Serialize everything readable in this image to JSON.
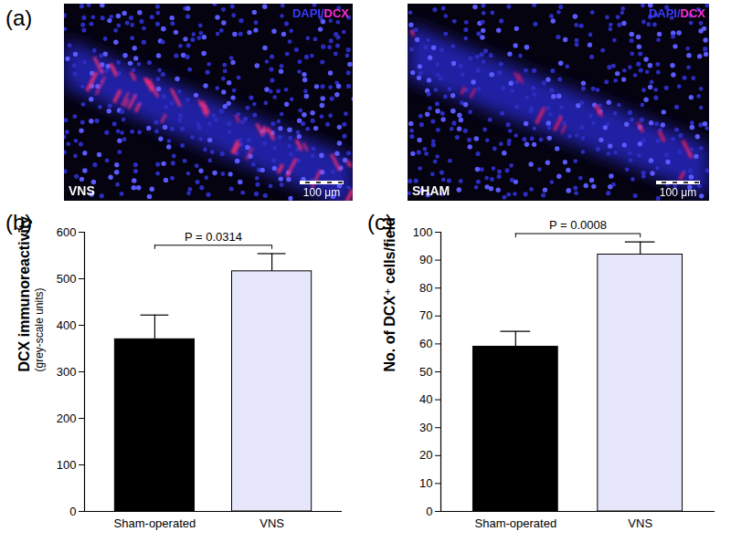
{
  "micrographs": {
    "panel_label": "(a)",
    "stain_parts": [
      {
        "text": "DAPI/",
        "color": "#3a3aff"
      },
      {
        "text": "DCX",
        "color": "#ff2bd6"
      }
    ],
    "images": [
      {
        "label": "VNS",
        "scale_bar": "100 μm"
      },
      {
        "label": "SHAM",
        "scale_bar": "100 μm"
      }
    ]
  },
  "chart_data": [
    {
      "type": "bar",
      "panel_label": "(b)",
      "ylabel": "DCX immunoreactivity",
      "ylabel_note": "(grey-scale units)",
      "categories": [
        "Sham-operated",
        "VNS"
      ],
      "values": [
        370,
        516
      ],
      "errors": [
        52,
        38
      ],
      "colors": [
        "#000000",
        "#e6e6fa"
      ],
      "ylim": [
        0,
        600
      ],
      "yticks": [
        0,
        100,
        200,
        300,
        400,
        500,
        600
      ],
      "annotations": [
        {
          "text": "P = 0.0314",
          "from": "Sham-operated",
          "to": "VNS"
        }
      ]
    },
    {
      "type": "bar",
      "panel_label": "(c)",
      "ylabel": "No. of DCX⁺ cells/field",
      "categories": [
        "Sham-operated",
        "VNS"
      ],
      "values": [
        59,
        92
      ],
      "errors": [
        5.5,
        4.5
      ],
      "colors": [
        "#000000",
        "#e6e6fa"
      ],
      "ylim": [
        0,
        100
      ],
      "yticks": [
        0,
        10,
        20,
        30,
        40,
        50,
        60,
        70,
        80,
        90,
        100
      ],
      "annotations": [
        {
          "text": "P = 0.0008",
          "from": "Sham-operated",
          "to": "VNS"
        }
      ]
    }
  ]
}
